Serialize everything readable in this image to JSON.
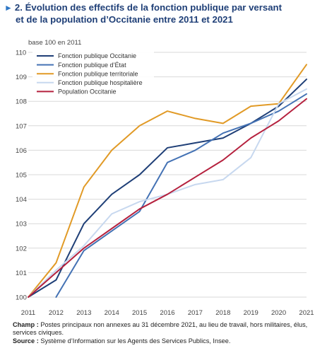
{
  "title": {
    "number": "2.",
    "line1": "Évolution des effectifs de la fonction publique par versant",
    "line2": "et de la population d’Occitanie entre 2011 et 2021"
  },
  "chart_data": {
    "type": "line",
    "unit_label": "base 100 en 2011",
    "x": [
      2011,
      2012,
      2013,
      2014,
      2015,
      2016,
      2017,
      2018,
      2019,
      2020,
      2021
    ],
    "ylim": [
      100,
      110
    ],
    "yticks": [
      100,
      101,
      102,
      103,
      104,
      105,
      106,
      107,
      108,
      109,
      110
    ],
    "grid": true,
    "legend": "top-left",
    "series": [
      {
        "name": "Fonction publique Occitanie",
        "color": "#1f3f77",
        "values": [
          100,
          100.7,
          103,
          104.2,
          105,
          106.1,
          106.3,
          106.5,
          107.1,
          107.8,
          108.9
        ]
      },
      {
        "name": "Fonction publique d’État",
        "color": "#4472b4",
        "values": [
          null,
          100,
          101.9,
          102.7,
          103.5,
          105.5,
          106,
          106.7,
          107.1,
          107.6,
          108.3
        ]
      },
      {
        "name": "Fonction publique territoriale",
        "color": "#e19a26",
        "values": [
          100,
          101.4,
          104.5,
          106,
          107,
          107.6,
          107.3,
          107.1,
          107.8,
          107.9,
          109.5
        ]
      },
      {
        "name": "Fonction publique hospitalière",
        "color": "#c7d8ef",
        "values": [
          100,
          101.1,
          102.1,
          103.4,
          103.9,
          104.2,
          104.6,
          104.8,
          105.7,
          107.9,
          108.5
        ]
      },
      {
        "name": "Population Occitanie",
        "color": "#b5213e",
        "values": [
          100,
          101,
          102,
          102.8,
          103.6,
          104.2,
          104.9,
          105.6,
          106.5,
          107.2,
          108.1
        ]
      }
    ]
  },
  "notes": {
    "champ_label": "Champ :",
    "champ_text": "Postes principaux non annexes au 31 décembre 2021, au lieu de travail, hors militaires, élus, services civiques.",
    "source_label": "Source :",
    "source_text": "Système d’Information sur les Agents des Services Publics, Insee."
  }
}
